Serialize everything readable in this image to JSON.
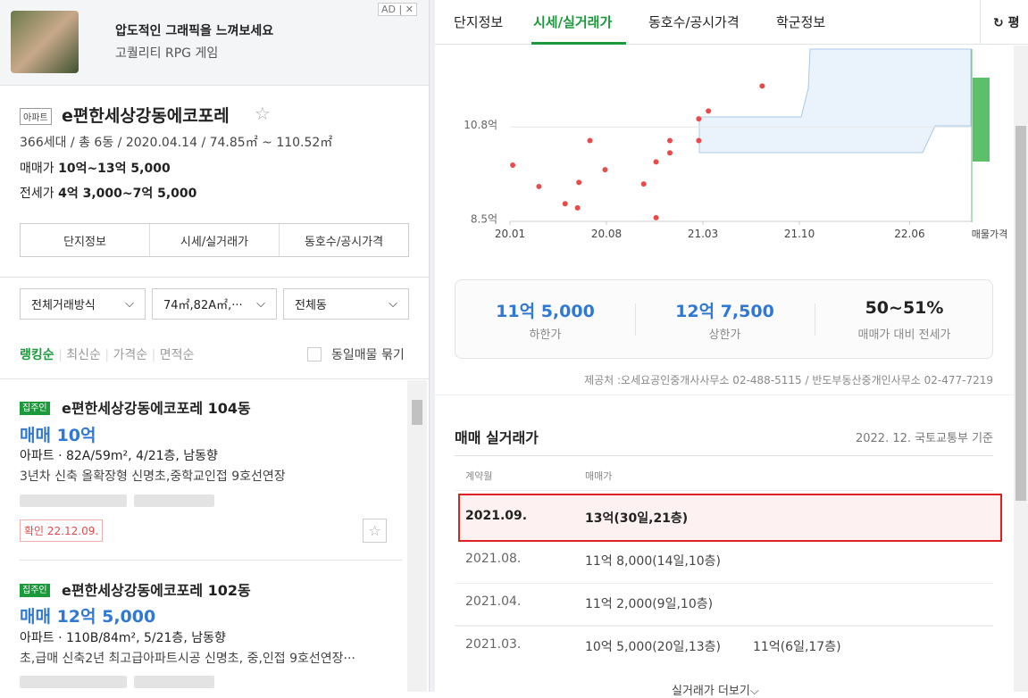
{
  "ad": {
    "label": "AD",
    "title": "압도적인 그래픽을 느껴보세요",
    "subtitle": "고퀄리티 RPG 게임"
  },
  "complex": {
    "badge": "아파트",
    "name": "e편한세상강동에코포레",
    "summary": "366세대 / 총 6동 / 2020.04.14 / 74.85㎡ ~ 110.52㎡",
    "sale_label": "매매가",
    "sale": "10억~13억 5,000",
    "jeonse_label": "전세가",
    "jeonse": "4억 3,000~7억 5,000"
  },
  "left_tabs": [
    "단지정보",
    "시세/실거래가",
    "동호수/공시가격"
  ],
  "filters": [
    "전체거래방식",
    "74㎡,82A㎡,···",
    "전체동"
  ],
  "sorts": [
    "랭킹순",
    "최신순",
    "가격순",
    "면적순"
  ],
  "group_option": "동일매물 묶기",
  "listings": [
    {
      "tag": "집주인",
      "title": "e편한세상강동에코포레 104동",
      "price": "매매 10억",
      "spec": "아파트 · 82A/59m², 4/21층, 남동향",
      "desc": "3년차 신축 올확장형 신명초,중학교인접 9호선연장",
      "confirm": "확인 22.12.09."
    },
    {
      "tag": "집주인",
      "title": "e편한세상강동에코포레 102동",
      "price": "매매 12억 5,000",
      "spec": "아파트 · 110B/84m², 5/21층, 남동향",
      "desc": "초,급매 신축2년 최고급아파트시공 신명초, 중,인접 9호선연장···"
    }
  ],
  "right_tabs": [
    "단지정보",
    "시세/실거래가",
    "동호수/공시가격",
    "학군정보"
  ],
  "refresh": "평",
  "chart_data": {
    "type": "scatter",
    "x": [
      0.2,
      2.1,
      4.0,
      4.9,
      5.0,
      5.8,
      6.9,
      9.7,
      10.6,
      10.6,
      11.6,
      11.6,
      13.7,
      13.7,
      14.4,
      18.3
    ],
    "values": [
      9.87,
      9.35,
      8.93,
      8.83,
      9.45,
      10.47,
      9.76,
      9.41,
      9.95,
      8.59,
      10.47,
      10.17,
      11.0,
      10.47,
      11.19,
      11.8
    ],
    "color": "#e84b4b",
    "ylim": [
      8.5,
      12.7
    ],
    "yticks": [
      {
        "value": 8.5,
        "label": "8.5억"
      },
      {
        "value": 10.8,
        "label": "10.8억"
      }
    ],
    "xlim": [
      0,
      34
    ],
    "xticks": [
      {
        "value": 0,
        "label": "20.01"
      },
      {
        "value": 7,
        "label": "20.08"
      },
      {
        "value": 14,
        "label": "21.03"
      },
      {
        "value": 21,
        "label": "21.10"
      },
      {
        "value": 29,
        "label": "22.06"
      }
    ],
    "grid": true,
    "listing_label": "매물가격"
  },
  "stats": [
    {
      "value": "11억 5,000",
      "label": "하한가"
    },
    {
      "value": "12억 7,500",
      "label": "상한가"
    },
    {
      "value": "50~51%",
      "label": "매매가 대비 전세가"
    }
  ],
  "source": "제공처 :오세요공인중개사사무소 02-488-5115 / 반도부동산중개인사무소 02-477-7219",
  "trades": {
    "title": "매매 실거래가",
    "basis": "2022. 12. 국토교통부 기준",
    "headers": [
      "계약월",
      "매매가"
    ],
    "rows": [
      {
        "month": "2021.09.",
        "prices": [
          "13억(30일,21층)"
        ]
      },
      {
        "month": "2021.08.",
        "prices": [
          "11억 8,000(14일,10층)"
        ]
      },
      {
        "month": "2021.04.",
        "prices": [
          "11억 2,000(9일,10층)"
        ]
      },
      {
        "month": "2021.03.",
        "prices": [
          "10억 5,000(20일,13층)",
          "11억(6일,17층)"
        ]
      }
    ],
    "more": "실거래가 더보기"
  }
}
